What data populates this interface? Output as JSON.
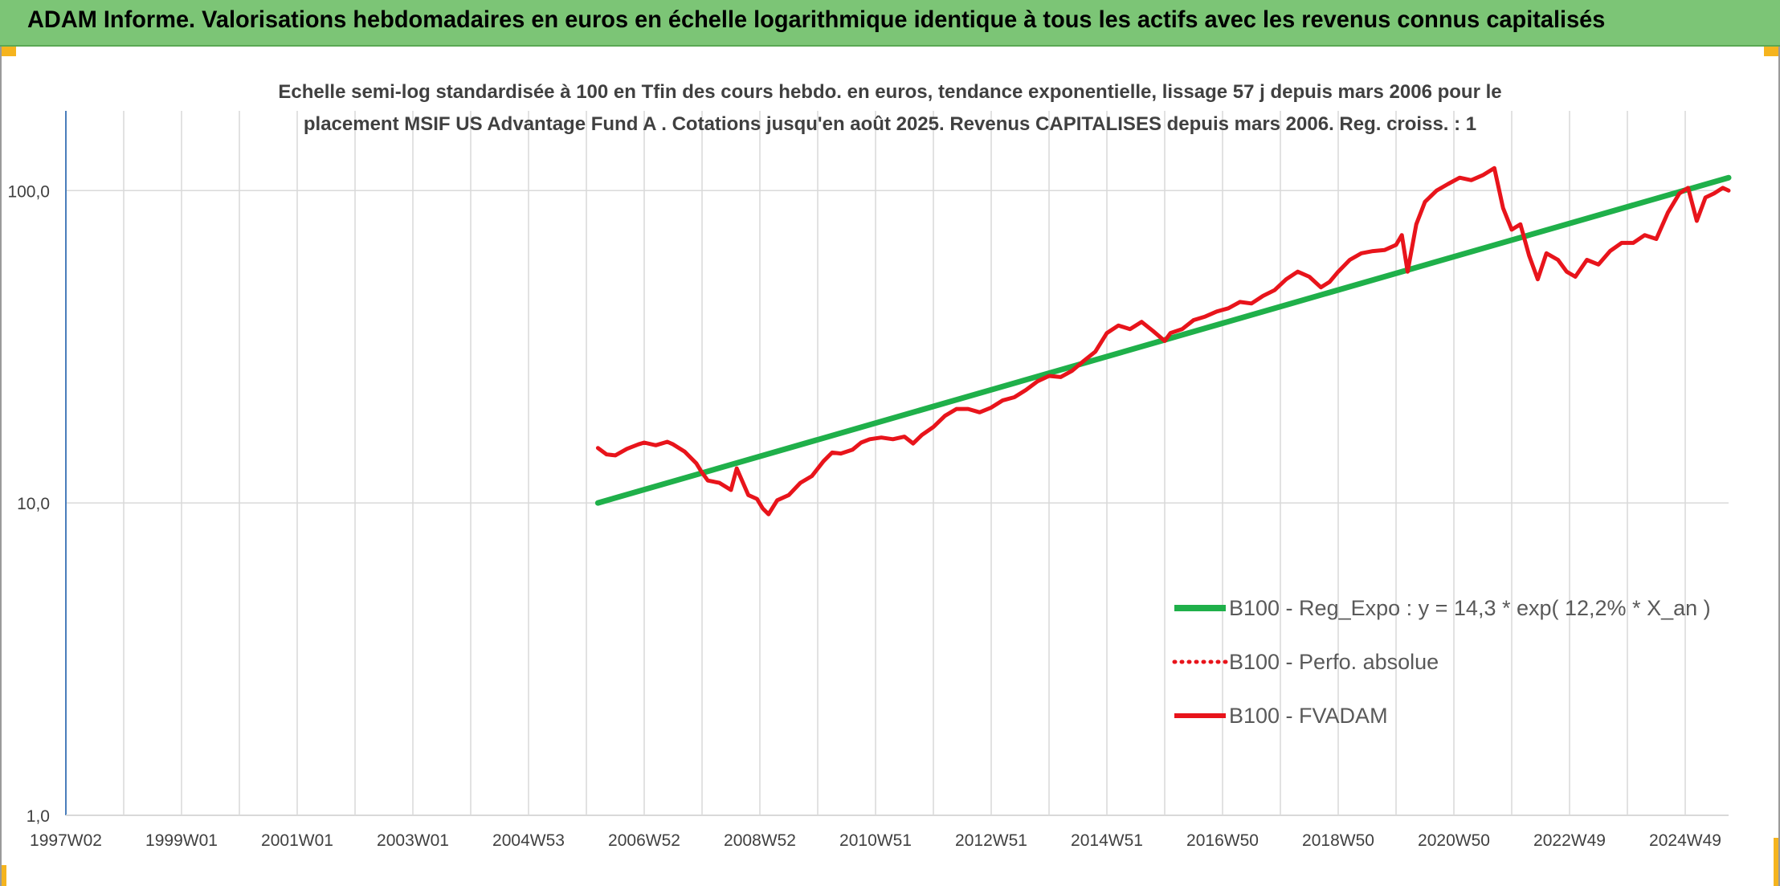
{
  "banner": {
    "title": "ADAM Informe. Valorisations hebdomadaires en euros en échelle logarithmique identique à tous les actifs avec les revenus connus capitalisés"
  },
  "colors": {
    "banner_bg": "#7cc576",
    "corner_accent": "#f5b41e",
    "regression_line": "#1fb04a",
    "fvadam_line": "#e8141b",
    "perf_absolue_line": "#e8141b",
    "gridline": "#d9d9d9",
    "axis_line": "#4a7ebb",
    "text": "#404040"
  },
  "chart_data": {
    "type": "line",
    "title_lines": [
      "Echelle semi-log standardisée à 100 en Tfin des cours hebdo. en euros, tendance exponentielle, lissage 57 j depuis mars 2006 pour le",
      "placement MSIF US Advantage Fund A . Cotations jusqu'en août 2025. Revenus CAPITALISES depuis mars 2006. Reg. croiss. : 1"
    ],
    "y_scale": "log",
    "ylim": [
      1,
      180
    ],
    "y_ticks": [
      {
        "value": 1,
        "label": "1,0"
      },
      {
        "value": 10,
        "label": "10,0"
      },
      {
        "value": 100,
        "label": "100,0"
      }
    ],
    "x_range": [
      1997.0,
      2025.75
    ],
    "x_ticks": [
      {
        "value": 1997.0,
        "label": "1997W02"
      },
      {
        "value": 1999.0,
        "label": "1999W01"
      },
      {
        "value": 2001.0,
        "label": "2001W01"
      },
      {
        "value": 2003.0,
        "label": "2003W01"
      },
      {
        "value": 2005.0,
        "label": "2004W53"
      },
      {
        "value": 2007.0,
        "label": "2006W52"
      },
      {
        "value": 2009.0,
        "label": "2008W52"
      },
      {
        "value": 2011.0,
        "label": "2010W51"
      },
      {
        "value": 2013.0,
        "label": "2012W51"
      },
      {
        "value": 2015.0,
        "label": "2014W51"
      },
      {
        "value": 2017.0,
        "label": "2016W50"
      },
      {
        "value": 2019.0,
        "label": "2018W50"
      },
      {
        "value": 2021.0,
        "label": "2020W50"
      },
      {
        "value": 2023.0,
        "label": "2022W49"
      },
      {
        "value": 2025.0,
        "label": "2024W49"
      }
    ],
    "grid": true,
    "legend_position": "bottom-right",
    "series": [
      {
        "name": "B100 - Reg_Expo : y = 14,3 * exp( 12,2% *  X_an )",
        "style": "solid-thick",
        "x": [
          2006.2,
          2025.75
        ],
        "y": [
          10.0,
          110.0
        ]
      },
      {
        "name": "B100 - Perfo. absolue",
        "style": "dotted",
        "x": [],
        "y": []
      },
      {
        "name": "B100 - FVADAM",
        "style": "solid",
        "x": [
          2006.2,
          2006.35,
          2006.5,
          2006.7,
          2006.9,
          2007.0,
          2007.2,
          2007.4,
          2007.5,
          2007.7,
          2007.9,
          2008.0,
          2008.1,
          2008.3,
          2008.5,
          2008.6,
          2008.8,
          2008.95,
          2009.05,
          2009.15,
          2009.3,
          2009.5,
          2009.7,
          2009.9,
          2010.1,
          2010.25,
          2010.4,
          2010.6,
          2010.75,
          2010.9,
          2011.1,
          2011.3,
          2011.5,
          2011.65,
          2011.8,
          2012.0,
          2012.2,
          2012.4,
          2012.6,
          2012.8,
          2013.0,
          2013.2,
          2013.4,
          2013.6,
          2013.8,
          2014.0,
          2014.2,
          2014.4,
          2014.6,
          2014.8,
          2015.0,
          2015.2,
          2015.4,
          2015.6,
          2015.8,
          2016.0,
          2016.1,
          2016.3,
          2016.5,
          2016.7,
          2016.9,
          2017.1,
          2017.3,
          2017.5,
          2017.7,
          2017.9,
          2018.1,
          2018.3,
          2018.5,
          2018.7,
          2018.85,
          2019.0,
          2019.2,
          2019.4,
          2019.6,
          2019.8,
          2020.0,
          2020.1,
          2020.2,
          2020.35,
          2020.5,
          2020.7,
          2020.9,
          2021.1,
          2021.3,
          2021.5,
          2021.7,
          2021.85,
          2022.0,
          2022.15,
          2022.3,
          2022.45,
          2022.6,
          2022.8,
          2022.95,
          2023.1,
          2023.3,
          2023.5,
          2023.7,
          2023.9,
          2024.1,
          2024.3,
          2024.5,
          2024.7,
          2024.9,
          2025.05,
          2025.2,
          2025.35,
          2025.5,
          2025.65,
          2025.75
        ],
        "y": [
          15.0,
          14.3,
          14.2,
          14.9,
          15.4,
          15.6,
          15.3,
          15.7,
          15.4,
          14.6,
          13.4,
          12.5,
          11.8,
          11.6,
          11.0,
          12.9,
          10.6,
          10.3,
          9.6,
          9.2,
          10.2,
          10.6,
          11.6,
          12.2,
          13.6,
          14.5,
          14.4,
          14.8,
          15.6,
          16.0,
          16.2,
          16.0,
          16.3,
          15.5,
          16.5,
          17.5,
          19.0,
          20.0,
          20.0,
          19.5,
          20.2,
          21.3,
          21.8,
          23.0,
          24.5,
          25.5,
          25.3,
          26.5,
          28.5,
          30.5,
          35.0,
          37.0,
          36.0,
          38.0,
          35.5,
          33.0,
          35.0,
          36.0,
          38.5,
          39.5,
          41.0,
          42.0,
          44.0,
          43.5,
          46.0,
          48.0,
          52.0,
          55.0,
          53.0,
          49.0,
          51.0,
          55.0,
          60.0,
          63.0,
          64.0,
          64.5,
          67.0,
          72.0,
          55.0,
          78.0,
          92.0,
          100.0,
          105.0,
          110.0,
          108.0,
          112.0,
          118.0,
          88.0,
          75.0,
          78.0,
          62.0,
          52.0,
          63.0,
          60.0,
          55.0,
          53.0,
          60.0,
          58.0,
          64.0,
          68.0,
          68.0,
          72.0,
          70.0,
          85.0,
          98.0,
          102.0,
          80.0,
          95.0,
          98.0,
          102.0,
          100.0
        ]
      }
    ]
  }
}
